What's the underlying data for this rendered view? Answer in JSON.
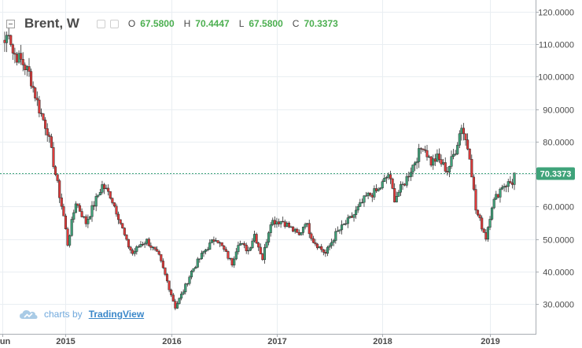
{
  "header": {
    "symbol": "Brent, W",
    "open_label": "O",
    "open": "67.5800",
    "high_label": "H",
    "high": "70.4447",
    "low_label": "L",
    "low": "67.5800",
    "close_label": "C",
    "close": "70.3373"
  },
  "watermark": {
    "text": "charts by",
    "brand": "TradingView"
  },
  "colors": {
    "up": "#3fa37a",
    "down": "#e03a3a",
    "last_price_line": "#3fa37a",
    "grid": "#e9eef2"
  },
  "chart_data": {
    "type": "candlestick",
    "title": "Brent, W",
    "ylim": [
      21,
      121
    ],
    "y_ticks": [
      "120.0000",
      "110.0000",
      "100.0000",
      "90.0000",
      "80.0000",
      "70.0000",
      "60.0000",
      "50.0000",
      "40.0000",
      "30.0000"
    ],
    "x_ticks": [
      "Jun",
      "2015",
      "2016",
      "2017",
      "2018",
      "2019"
    ],
    "last_price_label": "70.3373",
    "last_price": 70.3373,
    "anchors": [
      [
        "2014-06-09",
        110.5
      ],
      [
        "2014-06-23",
        114.5
      ],
      [
        "2014-07-07",
        107.5
      ],
      [
        "2014-08-04",
        105.0
      ],
      [
        "2014-09-01",
        101.0
      ],
      [
        "2014-10-06",
        90.0
      ],
      [
        "2014-11-03",
        83.5
      ],
      [
        "2014-12-01",
        70.0
      ],
      [
        "2014-12-29",
        57.0
      ],
      [
        "2015-01-12",
        48.5
      ],
      [
        "2015-02-09",
        61.5
      ],
      [
        "2015-03-16",
        55.0
      ],
      [
        "2015-05-11",
        66.5
      ],
      [
        "2015-06-08",
        63.5
      ],
      [
        "2015-07-06",
        57.0
      ],
      [
        "2015-08-03",
        49.0
      ],
      [
        "2015-08-24",
        45.5
      ],
      [
        "2015-09-21",
        48.5
      ],
      [
        "2015-10-12",
        49.5
      ],
      [
        "2015-11-23",
        44.5
      ],
      [
        "2015-12-21",
        37.0
      ],
      [
        "2016-01-18",
        29.0
      ],
      [
        "2016-02-15",
        34.0
      ],
      [
        "2016-03-14",
        40.0
      ],
      [
        "2016-04-25",
        46.0
      ],
      [
        "2016-06-06",
        50.5
      ],
      [
        "2016-08-01",
        42.5
      ],
      [
        "2016-08-22",
        49.0
      ],
      [
        "2016-09-26",
        46.5
      ],
      [
        "2016-10-17",
        51.5
      ],
      [
        "2016-11-14",
        44.0
      ],
      [
        "2016-12-12",
        55.5
      ],
      [
        "2017-01-23",
        55.5
      ],
      [
        "2017-03-20",
        51.0
      ],
      [
        "2017-04-10",
        55.5
      ],
      [
        "2017-05-08",
        49.5
      ],
      [
        "2017-06-19",
        45.5
      ],
      [
        "2017-07-24",
        51.5
      ],
      [
        "2017-09-25",
        57.5
      ],
      [
        "2017-11-06",
        63.0
      ],
      [
        "2017-12-18",
        65.0
      ],
      [
        "2018-01-22",
        70.0
      ],
      [
        "2018-02-12",
        62.5
      ],
      [
        "2018-03-19",
        67.5
      ],
      [
        "2018-04-23",
        74.0
      ],
      [
        "2018-05-21",
        79.0
      ],
      [
        "2018-06-18",
        73.5
      ],
      [
        "2018-07-09",
        75.0
      ],
      [
        "2018-08-13",
        71.0
      ],
      [
        "2018-09-10",
        77.5
      ],
      [
        "2018-10-01",
        85.0
      ],
      [
        "2018-10-29",
        76.0
      ],
      [
        "2018-11-19",
        59.0
      ],
      [
        "2018-12-24",
        50.5
      ],
      [
        "2019-01-14",
        60.5
      ],
      [
        "2019-02-18",
        66.5
      ],
      [
        "2019-03-25",
        67.5
      ],
      [
        "2019-04-01",
        70.3
      ]
    ]
  }
}
